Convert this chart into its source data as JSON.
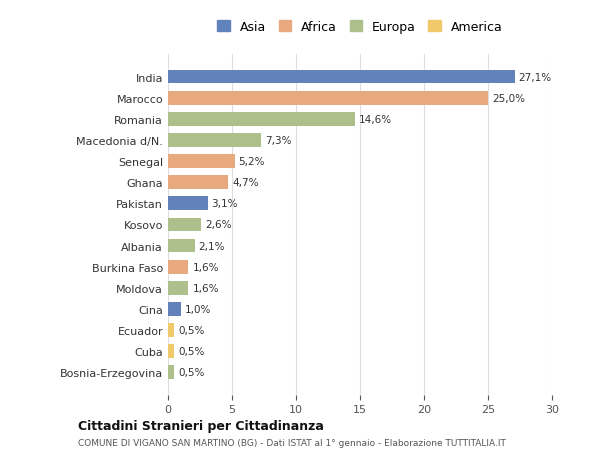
{
  "categories": [
    "India",
    "Marocco",
    "Romania",
    "Macedonia d/N.",
    "Senegal",
    "Ghana",
    "Pakistan",
    "Kosovo",
    "Albania",
    "Burkina Faso",
    "Moldova",
    "Cina",
    "Ecuador",
    "Cuba",
    "Bosnia-Erzegovina"
  ],
  "values": [
    27.1,
    25.0,
    14.6,
    7.3,
    5.2,
    4.7,
    3.1,
    2.6,
    2.1,
    1.6,
    1.6,
    1.0,
    0.5,
    0.5,
    0.5
  ],
  "labels": [
    "27,1%",
    "25,0%",
    "14,6%",
    "7,3%",
    "5,2%",
    "4,7%",
    "3,1%",
    "2,6%",
    "2,1%",
    "1,6%",
    "1,6%",
    "1,0%",
    "0,5%",
    "0,5%",
    "0,5%"
  ],
  "continents": [
    "Asia",
    "Africa",
    "Europa",
    "Europa",
    "Africa",
    "Africa",
    "Asia",
    "Europa",
    "Europa",
    "Africa",
    "Europa",
    "Asia",
    "America",
    "America",
    "Europa"
  ],
  "continent_colors": {
    "Asia": "#6282BC",
    "Africa": "#E8A97E",
    "Europa": "#ADBF8A",
    "America": "#F0C96A"
  },
  "legend_order": [
    "Asia",
    "Africa",
    "Europa",
    "America"
  ],
  "title": "Cittadini Stranieri per Cittadinanza",
  "subtitle": "COMUNE DI VIGANO SAN MARTINO (BG) - Dati ISTAT al 1° gennaio - Elaborazione TUTTITALIA.IT",
  "xlim": [
    0,
    30
  ],
  "xticks": [
    0,
    5,
    10,
    15,
    20,
    25,
    30
  ],
  "background_color": "#ffffff",
  "grid_color": "#dddddd",
  "bar_height": 0.65
}
